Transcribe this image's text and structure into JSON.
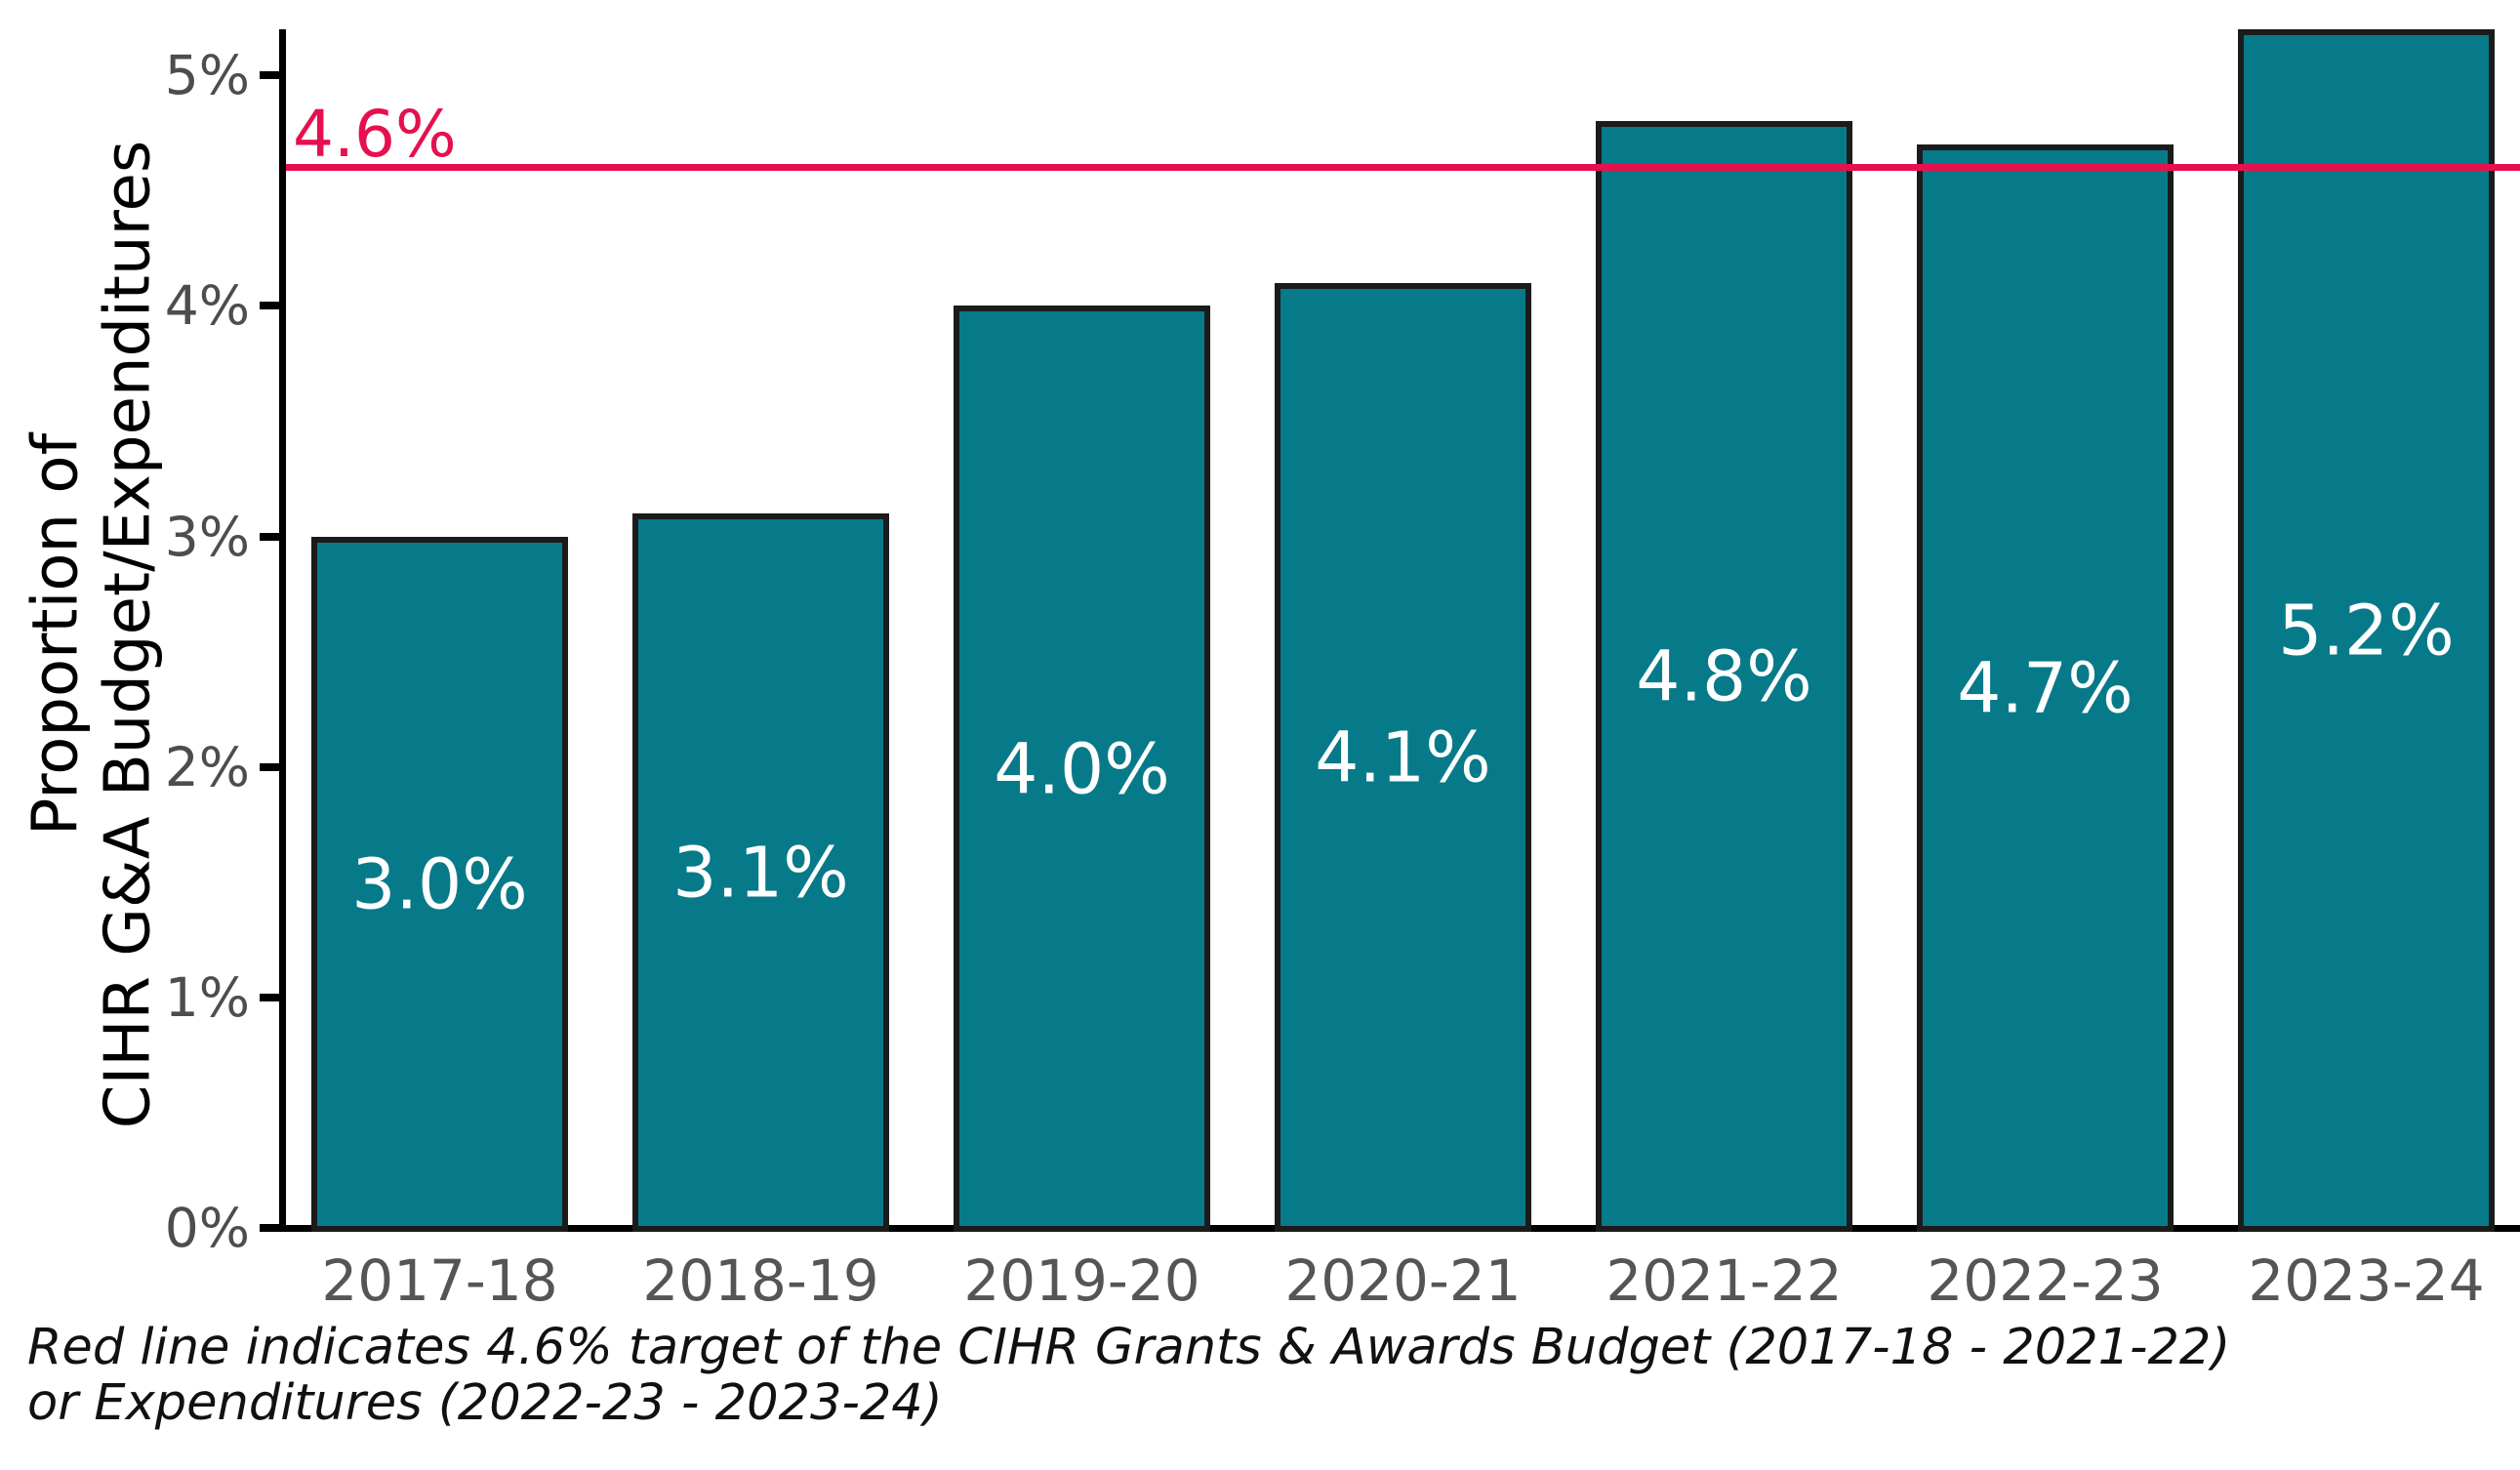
{
  "chart_data": {
    "type": "bar",
    "title": "",
    "xlabel": "",
    "ylabel": "Proportion of\nCIHR G&A Budget/Expenditures",
    "categories": [
      "2017-18",
      "2018-19",
      "2019-20",
      "2020-21",
      "2021-22",
      "2022-23",
      "2023-24"
    ],
    "values": [
      3.0,
      3.1,
      4.0,
      4.1,
      4.8,
      4.7,
      5.2
    ],
    "bar_labels": [
      "3.0%",
      "3.1%",
      "4.0%",
      "4.1%",
      "4.8%",
      "4.7%",
      "5.2%"
    ],
    "ylim": [
      0,
      5.2
    ],
    "yticks": [
      {
        "value": 0,
        "label": "0%"
      },
      {
        "value": 1,
        "label": "1%"
      },
      {
        "value": 2,
        "label": "2%"
      },
      {
        "value": 3,
        "label": "3%"
      },
      {
        "value": 4,
        "label": "4%"
      },
      {
        "value": 5,
        "label": "5%"
      }
    ],
    "target_line": {
      "value": 4.6,
      "label": "4.6%"
    },
    "caption": "Red line indicates 4.6% target of the CIHR Grants & Awards Budget (2017-18 - 2021-22)\nor Expenditures (2022-23 - 2023-24)",
    "grid": false,
    "legend_position": "none"
  },
  "colors": {
    "bar_fill": "#077A8A",
    "bar_border": "#1b1b1b",
    "axis": "#000000",
    "ytick_text": "#4d4d4d",
    "xtick_text": "#555555",
    "target": "#E6104E",
    "bar_label_text": "#ffffff",
    "caption_text": "#111111",
    "background": "#ffffff"
  }
}
